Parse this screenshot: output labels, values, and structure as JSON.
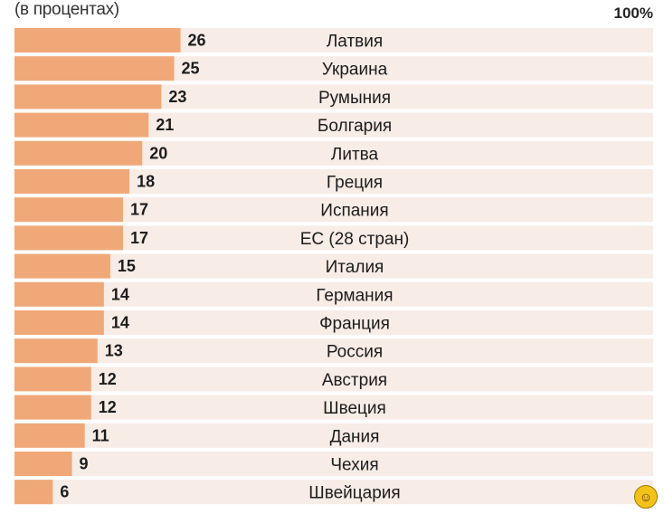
{
  "caption": "(в процентах)",
  "max_label": "100%",
  "colors": {
    "bar": "#f0a878",
    "track": "#f7ece6"
  },
  "badge_icon": "sticker-face-icon",
  "chart_data": {
    "type": "bar",
    "orientation": "horizontal",
    "categories": [
      "Латвия",
      "Украина",
      "Румыния",
      "Болгария",
      "Литва",
      "Греция",
      "Испания",
      "ЕС (28 стран)",
      "Италия",
      "Германия",
      "Франция",
      "Россия",
      "Австрия",
      "Швеция",
      "Дания",
      "Чехия",
      "Швейцария"
    ],
    "values": [
      26,
      25,
      23,
      21,
      20,
      18,
      17,
      17,
      15,
      14,
      14,
      13,
      12,
      12,
      11,
      9,
      6
    ],
    "xlim": [
      0,
      100
    ],
    "unit": "%"
  }
}
